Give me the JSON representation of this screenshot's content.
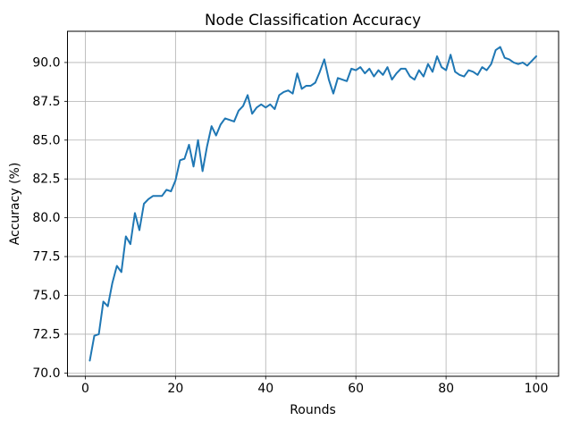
{
  "chart_data": {
    "type": "line",
    "title": "Node Classification Accuracy",
    "xlabel": "Rounds",
    "ylabel": "Accuracy (%)",
    "series_name": "accuracy",
    "x_start": 1,
    "x_step": 1,
    "values": [
      70.8,
      72.4,
      72.5,
      74.6,
      74.3,
      75.8,
      76.9,
      76.5,
      78.8,
      78.3,
      80.3,
      79.2,
      80.9,
      81.2,
      81.4,
      81.4,
      81.4,
      81.8,
      81.7,
      82.4,
      83.7,
      83.8,
      84.7,
      83.3,
      85.0,
      83.0,
      84.6,
      85.9,
      85.3,
      86.0,
      86.4,
      86.3,
      86.2,
      86.9,
      87.2,
      87.9,
      86.7,
      87.1,
      87.3,
      87.1,
      87.3,
      87.0,
      87.9,
      88.1,
      88.2,
      88.0,
      89.3,
      88.3,
      88.5,
      88.5,
      88.7,
      89.4,
      90.2,
      88.9,
      88.0,
      89.0,
      88.9,
      88.8,
      89.6,
      89.5,
      89.7,
      89.3,
      89.6,
      89.1,
      89.5,
      89.2,
      89.7,
      88.9,
      89.3,
      89.6,
      89.6,
      89.1,
      88.9,
      89.5,
      89.1,
      89.9,
      89.4,
      90.4,
      89.7,
      89.5,
      90.5,
      89.4,
      89.2,
      89.1,
      89.5,
      89.4,
      89.2,
      89.7,
      89.5,
      89.9,
      90.8,
      91.0,
      90.3,
      90.2,
      90.0,
      89.9,
      90.0,
      89.8,
      90.1,
      90.4
    ],
    "xticks": {
      "values": [
        0,
        20,
        40,
        60,
        80,
        100
      ],
      "labels": [
        "0",
        "20",
        "40",
        "60",
        "80",
        "100"
      ]
    },
    "yticks": {
      "values": [
        70.0,
        72.5,
        75.0,
        77.5,
        80.0,
        82.5,
        85.0,
        87.5,
        90.0
      ],
      "labels": [
        "70.0",
        "72.5",
        "75.0",
        "77.5",
        "80.0",
        "82.5",
        "85.0",
        "87.5",
        "90.0"
      ]
    },
    "xlim": [
      -3.95,
      104.95
    ],
    "ylim": [
      69.79,
      92.01
    ],
    "grid": true,
    "legend": null,
    "line_color": "#1f77b4",
    "line_width": 2,
    "grid_color": "#b0b0b0",
    "spine_color": "#000000",
    "background_color": "#ffffff"
  }
}
